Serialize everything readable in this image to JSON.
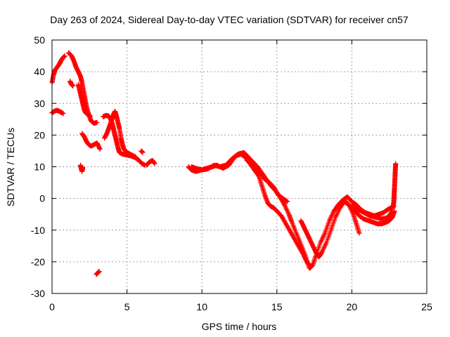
{
  "chart_data": {
    "type": "scatter",
    "title": "Day 263 of 2024, Sidereal Day-to-day VTEC variation (SDTVAR) for receiver cn57",
    "xlabel": "GPS time / hours",
    "ylabel": "SDTVAR / TECUs",
    "xlim": [
      0,
      25
    ],
    "ylim": [
      -30,
      50
    ],
    "x_ticks": [
      0,
      5,
      10,
      15,
      20,
      25
    ],
    "y_ticks": [
      -30,
      -20,
      -10,
      0,
      10,
      20,
      30,
      40,
      50
    ],
    "x_tick_labels": [
      "0",
      "5",
      "10",
      "15",
      "20",
      "25"
    ],
    "y_tick_labels": [
      "-30",
      "-20",
      "-10",
      "0",
      "10",
      "20",
      "30",
      "40",
      "50"
    ],
    "grid": true,
    "marker": "plus",
    "color": "#ff0000",
    "series": [
      {
        "name": "trace-a",
        "points": [
          [
            0.0,
            36.5
          ],
          [
            0.1,
            39
          ],
          [
            0.2,
            40.5
          ],
          [
            0.35,
            41.5
          ],
          [
            0.5,
            42.5
          ],
          [
            0.6,
            43.5
          ],
          [
            0.75,
            44.5
          ],
          [
            0.85,
            45
          ]
        ]
      },
      {
        "name": "trace-b",
        "points": [
          [
            0.0,
            27
          ],
          [
            0.15,
            27.5
          ],
          [
            0.3,
            27.8
          ],
          [
            0.45,
            27.6
          ],
          [
            0.6,
            27.2
          ],
          [
            0.75,
            26.8
          ]
        ]
      },
      {
        "name": "trace-c",
        "points": [
          [
            1.1,
            46
          ],
          [
            1.3,
            45
          ],
          [
            1.45,
            43.5
          ],
          [
            1.6,
            41.5
          ],
          [
            1.75,
            40
          ],
          [
            1.9,
            38.5
          ],
          [
            2.0,
            36.5
          ],
          [
            2.1,
            34
          ],
          [
            2.2,
            31.5
          ],
          [
            2.3,
            29
          ],
          [
            2.45,
            26.5
          ],
          [
            2.6,
            24.5
          ],
          [
            2.8,
            23.7
          ],
          [
            3.0,
            24
          ]
        ]
      },
      {
        "name": "trace-d",
        "points": [
          [
            1.75,
            36
          ],
          [
            1.85,
            34
          ],
          [
            1.95,
            32
          ],
          [
            2.05,
            30
          ],
          [
            2.15,
            28
          ],
          [
            2.25,
            27
          ],
          [
            2.4,
            26.5
          ],
          [
            2.55,
            26
          ]
        ]
      },
      {
        "name": "trace-e",
        "points": [
          [
            1.2,
            37
          ],
          [
            1.3,
            36
          ],
          [
            1.4,
            35.5
          ]
        ]
      },
      {
        "name": "trace-f",
        "points": [
          [
            1.9,
            10.5
          ],
          [
            1.95,
            9.5
          ],
          [
            2.0,
            8.5
          ],
          [
            2.05,
            9.8
          ]
        ]
      },
      {
        "name": "trace-g",
        "points": [
          [
            2.0,
            20.5
          ],
          [
            2.15,
            19.5
          ],
          [
            2.3,
            18
          ],
          [
            2.45,
            17
          ],
          [
            2.6,
            16.5
          ],
          [
            2.8,
            17
          ],
          [
            3.0,
            17.5
          ],
          [
            3.2,
            15.5
          ]
        ]
      },
      {
        "name": "trace-h",
        "points": [
          [
            2.95,
            -24
          ],
          [
            3.05,
            -23.5
          ],
          [
            3.15,
            -23
          ]
        ]
      },
      {
        "name": "trace-i",
        "points": [
          [
            3.5,
            19
          ],
          [
            3.7,
            21
          ],
          [
            3.85,
            23
          ],
          [
            4.0,
            25
          ],
          [
            4.1,
            26.5
          ],
          [
            4.2,
            27.5
          ],
          [
            4.3,
            26
          ],
          [
            4.4,
            24
          ],
          [
            4.5,
            22
          ],
          [
            4.6,
            19
          ],
          [
            4.7,
            17
          ],
          [
            4.8,
            15.5
          ],
          [
            5.0,
            14.5
          ],
          [
            5.2,
            14
          ],
          [
            5.4,
            13.5
          ],
          [
            5.6,
            13
          ]
        ]
      },
      {
        "name": "trace-j",
        "points": [
          [
            3.4,
            25.8
          ],
          [
            3.6,
            26.2
          ],
          [
            3.8,
            26
          ],
          [
            4.0,
            24
          ],
          [
            4.1,
            22
          ],
          [
            4.2,
            20
          ],
          [
            4.3,
            18
          ],
          [
            4.4,
            16
          ],
          [
            4.5,
            14.5
          ],
          [
            4.7,
            14
          ],
          [
            4.9,
            13.8
          ],
          [
            5.2,
            13.5
          ],
          [
            5.5,
            13
          ],
          [
            5.8,
            12
          ],
          [
            6.0,
            11
          ],
          [
            6.2,
            10.5
          ]
        ]
      },
      {
        "name": "trace-k",
        "points": [
          [
            6.3,
            10.5
          ],
          [
            6.5,
            11.5
          ],
          [
            6.7,
            12
          ],
          [
            6.85,
            11
          ]
        ]
      },
      {
        "name": "trace-l",
        "points": [
          [
            5.95,
            15
          ],
          [
            6.05,
            14.5
          ]
        ]
      },
      {
        "name": "trace-m",
        "points": [
          [
            9.1,
            10
          ],
          [
            9.3,
            9
          ],
          [
            9.6,
            8.5
          ],
          [
            10.0,
            9
          ],
          [
            10.3,
            9.5
          ],
          [
            10.7,
            10
          ],
          [
            11.0,
            10.5
          ],
          [
            11.4,
            9.5
          ],
          [
            11.8,
            10.5
          ],
          [
            12.0,
            12
          ],
          [
            12.3,
            13.5
          ],
          [
            12.6,
            14
          ],
          [
            12.9,
            13
          ],
          [
            13.2,
            11
          ],
          [
            13.5,
            9
          ],
          [
            13.8,
            7
          ],
          [
            14.0,
            4
          ],
          [
            14.2,
            1
          ],
          [
            14.4,
            -1.5
          ],
          [
            14.6,
            -2.5
          ],
          [
            14.8,
            -3
          ],
          [
            15.0,
            -4
          ],
          [
            15.3,
            -5.5
          ],
          [
            15.6,
            -8
          ],
          [
            15.9,
            -10.5
          ],
          [
            16.2,
            -13
          ],
          [
            16.5,
            -15.5
          ],
          [
            16.8,
            -18
          ],
          [
            17.0,
            -20
          ],
          [
            17.15,
            -21
          ]
        ]
      },
      {
        "name": "trace-n",
        "points": [
          [
            9.3,
            10
          ],
          [
            9.6,
            9.5
          ],
          [
            10.0,
            9
          ],
          [
            10.4,
            9.3
          ],
          [
            10.8,
            10.5
          ],
          [
            11.2,
            10
          ],
          [
            11.6,
            10.5
          ],
          [
            12.0,
            12.5
          ],
          [
            12.4,
            14
          ],
          [
            12.8,
            14.5
          ],
          [
            13.1,
            13
          ],
          [
            13.4,
            11.5
          ],
          [
            13.7,
            10
          ],
          [
            14.0,
            8
          ],
          [
            14.3,
            6
          ],
          [
            14.6,
            4
          ],
          [
            14.9,
            2.5
          ],
          [
            15.2,
            0.5
          ],
          [
            15.5,
            -2
          ],
          [
            15.8,
            -5
          ],
          [
            16.0,
            -7.5
          ],
          [
            16.3,
            -11
          ],
          [
            16.6,
            -14.5
          ],
          [
            16.9,
            -18
          ],
          [
            17.15,
            -22
          ]
        ]
      },
      {
        "name": "trace-o",
        "points": [
          [
            13.0,
            12
          ],
          [
            13.3,
            11
          ],
          [
            13.6,
            9.5
          ],
          [
            13.9,
            8
          ],
          [
            14.2,
            6
          ],
          [
            14.5,
            5
          ],
          [
            14.8,
            3.5
          ],
          [
            15.1,
            1
          ],
          [
            15.4,
            0
          ],
          [
            15.7,
            -1
          ]
        ]
      },
      {
        "name": "trace-p",
        "points": [
          [
            16.6,
            -7
          ],
          [
            16.8,
            -9
          ],
          [
            17.0,
            -11
          ],
          [
            17.2,
            -13
          ],
          [
            17.4,
            -15
          ],
          [
            17.6,
            -17
          ],
          [
            17.8,
            -18.5
          ],
          [
            18.0,
            -17
          ],
          [
            18.3,
            -14
          ],
          [
            18.6,
            -10
          ],
          [
            18.9,
            -6
          ],
          [
            19.2,
            -3
          ],
          [
            19.5,
            -1
          ],
          [
            19.8,
            -2
          ],
          [
            20.1,
            -5
          ],
          [
            20.3,
            -8
          ],
          [
            20.5,
            -11
          ]
        ]
      },
      {
        "name": "trace-q",
        "points": [
          [
            17.2,
            -22
          ],
          [
            17.4,
            -21
          ],
          [
            17.6,
            -18
          ],
          [
            17.9,
            -14
          ],
          [
            18.2,
            -11
          ],
          [
            18.5,
            -7
          ],
          [
            18.8,
            -4
          ],
          [
            19.1,
            -2
          ],
          [
            19.4,
            -0.5
          ],
          [
            19.7,
            0.5
          ],
          [
            20.0,
            -1
          ],
          [
            20.3,
            -2
          ],
          [
            20.6,
            -3.5
          ],
          [
            20.9,
            -4.5
          ],
          [
            21.2,
            -5
          ],
          [
            21.5,
            -5.5
          ],
          [
            21.8,
            -5
          ],
          [
            22.1,
            -4.5
          ],
          [
            22.4,
            -3.5
          ],
          [
            22.6,
            -3
          ],
          [
            22.8,
            -2.5
          ]
        ]
      },
      {
        "name": "trace-r",
        "points": [
          [
            19.6,
            -1
          ],
          [
            19.9,
            -2.5
          ],
          [
            20.2,
            -4
          ],
          [
            20.5,
            -5.5
          ],
          [
            20.8,
            -6.5
          ],
          [
            21.1,
            -7
          ],
          [
            21.4,
            -7.5
          ],
          [
            21.7,
            -8
          ],
          [
            22.0,
            -8
          ],
          [
            22.3,
            -7.5
          ],
          [
            22.5,
            -7
          ],
          [
            22.7,
            -6
          ],
          [
            22.85,
            -4
          ]
        ]
      },
      {
        "name": "trace-s",
        "points": [
          [
            20.0,
            -2
          ],
          [
            20.4,
            -3.5
          ],
          [
            20.8,
            -4.5
          ],
          [
            21.2,
            -5.5
          ],
          [
            21.6,
            -6
          ],
          [
            22.0,
            -6.5
          ],
          [
            22.4,
            -6
          ],
          [
            22.7,
            -4
          ]
        ]
      },
      {
        "name": "trace-t",
        "points": [
          [
            22.75,
            -3
          ],
          [
            22.8,
            -1
          ],
          [
            22.82,
            1
          ],
          [
            22.84,
            3
          ],
          [
            22.86,
            5
          ],
          [
            22.88,
            7
          ],
          [
            22.9,
            9
          ],
          [
            22.92,
            11
          ]
        ]
      }
    ]
  }
}
